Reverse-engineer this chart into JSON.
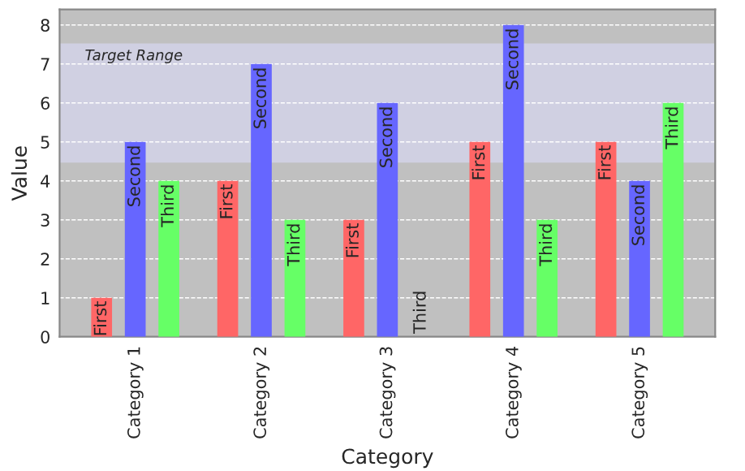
{
  "chart_data": {
    "type": "bar",
    "xlabel": "Category",
    "ylabel": "Value",
    "categories": [
      "Category 1",
      "Category 2",
      "Category 3",
      "Category 4",
      "Category 5"
    ],
    "series": [
      {
        "name": "First",
        "color": "#ff6666",
        "values": [
          1,
          4,
          3,
          5,
          5
        ]
      },
      {
        "name": "Second",
        "color": "#6666ff",
        "values": [
          5,
          7,
          6,
          8,
          4
        ]
      },
      {
        "name": "Third",
        "color": "#66ff66",
        "values": [
          4,
          3,
          0,
          3,
          6
        ]
      }
    ],
    "ylim": [
      0,
      8.4
    ],
    "yticks": [
      0,
      1,
      2,
      3,
      4,
      5,
      6,
      7,
      8
    ],
    "grid": "y",
    "bands": [
      {
        "axis": "y",
        "from": 4.5,
        "to": 7.5,
        "label": "Target Range",
        "color": "#d0d0e2"
      }
    ]
  }
}
